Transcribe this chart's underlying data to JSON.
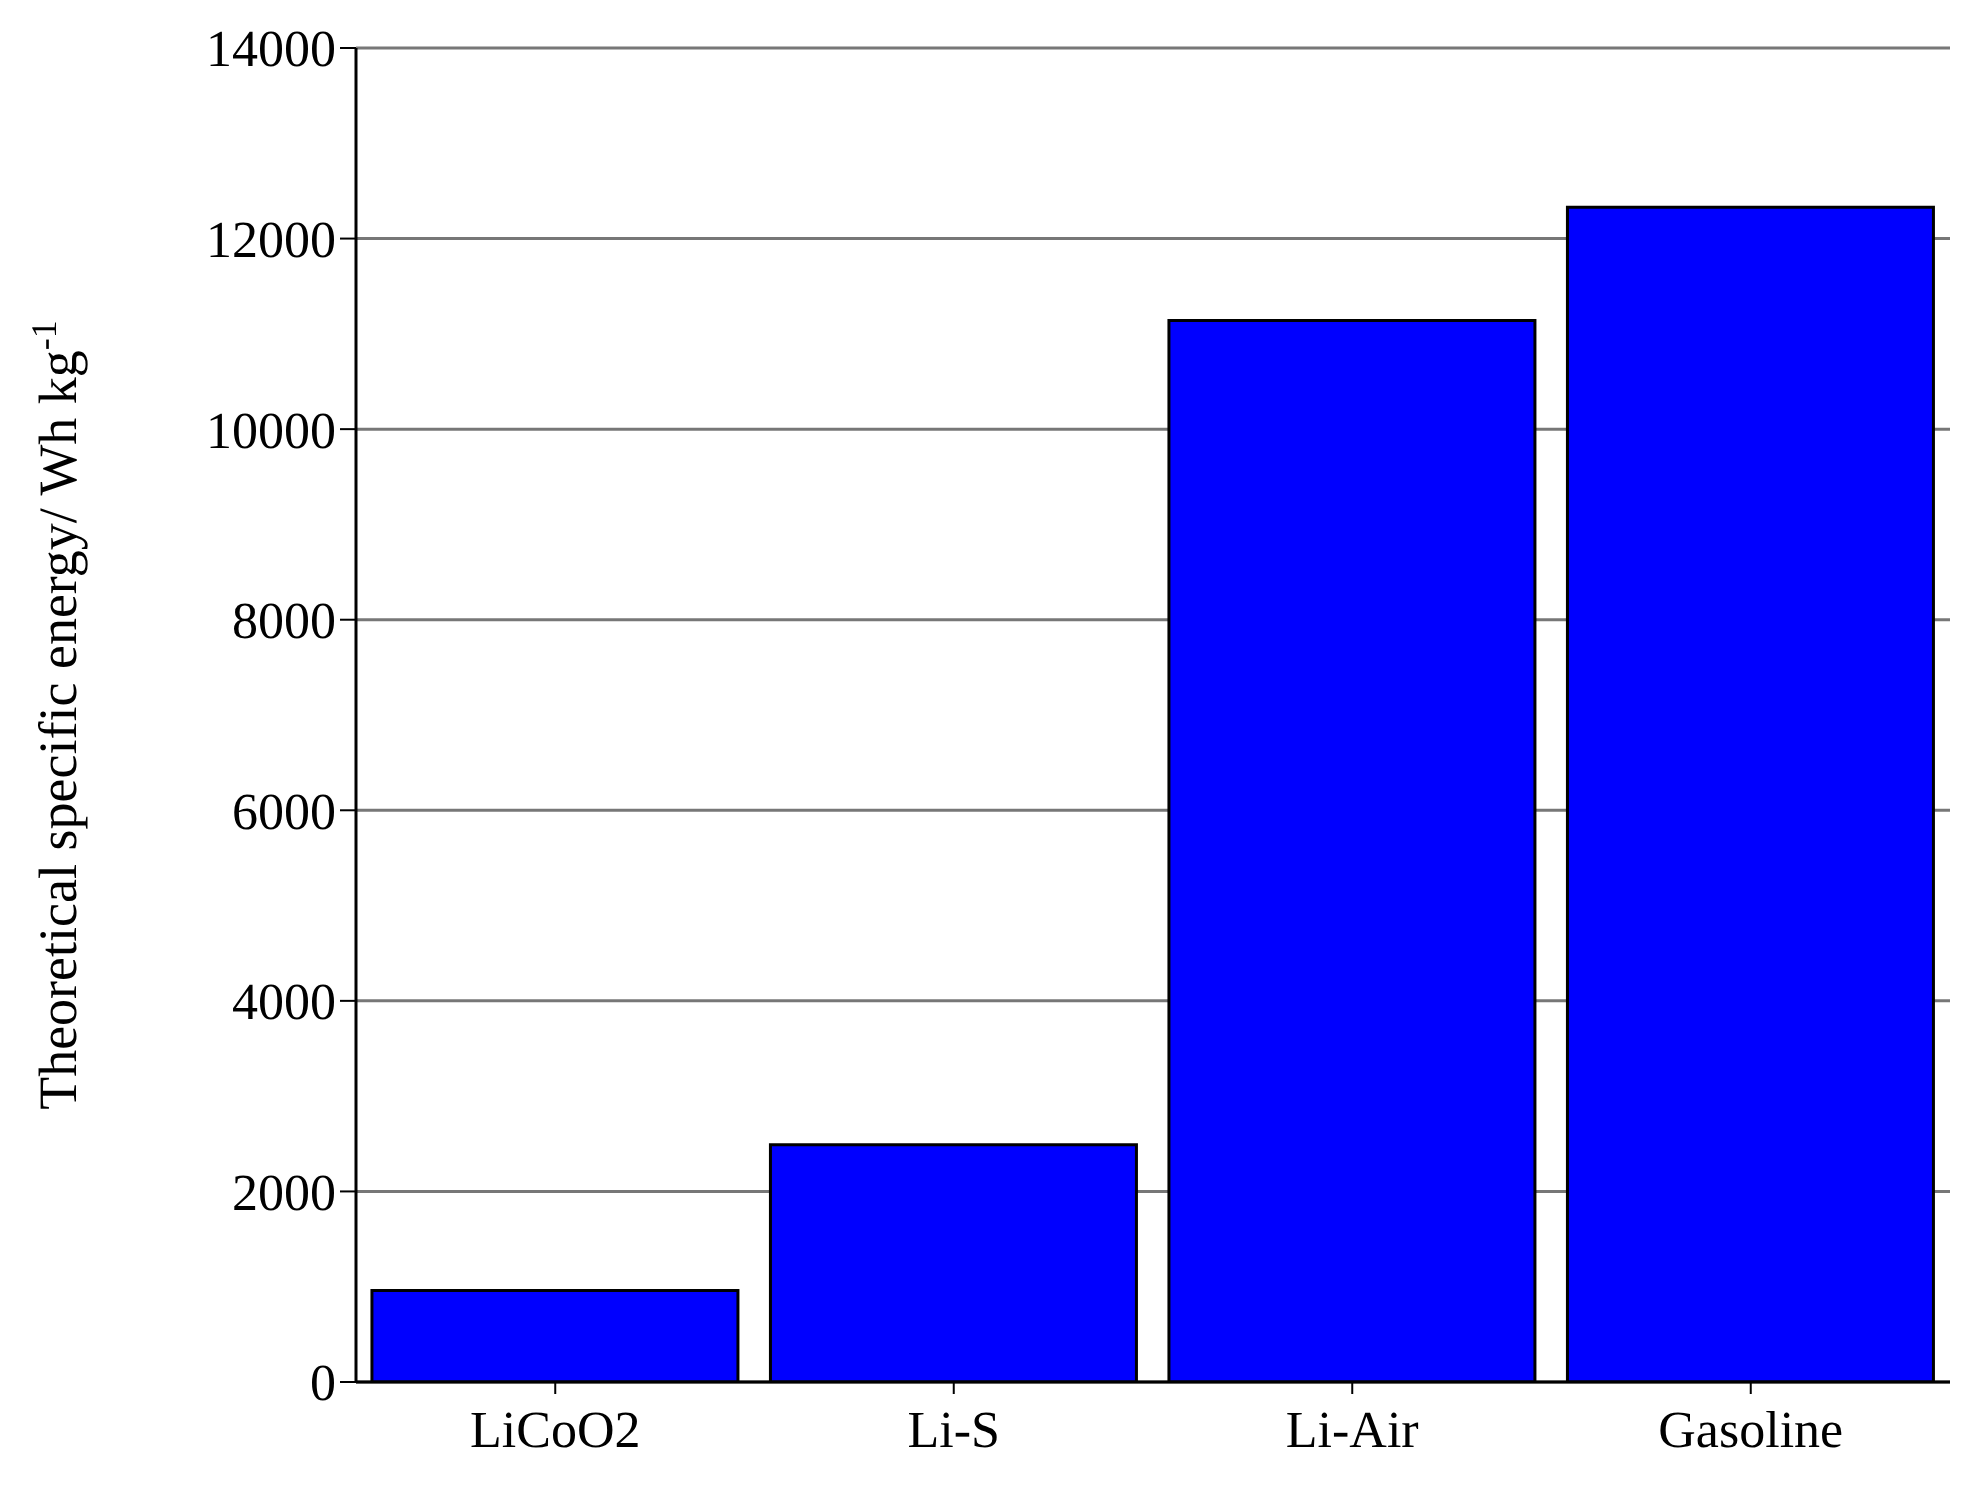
{
  "chart_data": {
    "type": "bar",
    "ylabel": "Theoretical specific energy/ Wh kg$^{-1}$",
    "categories": [
      "LiCoO2",
      "Li-S",
      "Li-Air",
      "Gasoline"
    ],
    "values": [
      960,
      2490,
      11140,
      12330
    ],
    "color": "#0000ff",
    "ylim": [
      0,
      14000
    ],
    "yticks": [
      0,
      2000,
      4000,
      6000,
      8000,
      10000,
      12000,
      14000
    ],
    "grid": "y"
  }
}
